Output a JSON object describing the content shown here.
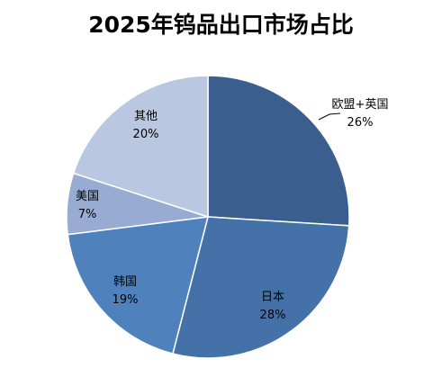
{
  "chart_data": {
    "type": "pie",
    "title": "2025年钨品出口市场占比",
    "slices": [
      {
        "name": "欧盟+英国",
        "value": 26,
        "label": "26%",
        "color": "#3a5f8f"
      },
      {
        "name": "日本",
        "value": 28,
        "label": "28%",
        "color": "#4472a8"
      },
      {
        "name": "韩国",
        "value": 19,
        "label": "19%",
        "color": "#4f82bd"
      },
      {
        "name": "美国",
        "value": 7,
        "label": "7%",
        "color": "#98abd2"
      },
      {
        "name": "其他",
        "value": 20,
        "label": "20%",
        "color": "#b9c7e1"
      }
    ],
    "start_angle": "12 o'clock",
    "direction": "clockwise",
    "legend": "none"
  }
}
